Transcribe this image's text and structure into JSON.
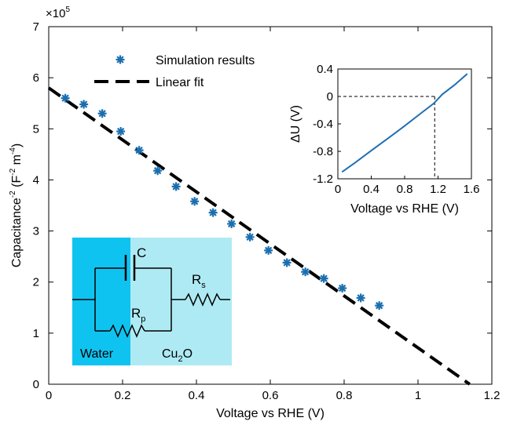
{
  "colors": {
    "series": "#1a6fb0",
    "fit": "#000000",
    "inset_line": "#1f6fb2",
    "water": "#0fc3f0",
    "cu2o": "#aeeaf4"
  },
  "chart_data": [
    {
      "type": "scatter",
      "xlabel": "Voltage vs RHE (V)",
      "ylabel_main": "Capacitance",
      "ylabel_exp": "-2",
      "ylabel_units_pre": " (F",
      "ylabel_units_exp1": "-2",
      "ylabel_units_mid": " m",
      "ylabel_units_exp2": "-4",
      "ylabel_units_post": ")",
      "multiplier": "×10",
      "multiplier_exp": "5",
      "xlim": [
        0,
        1.2
      ],
      "ylim": [
        0,
        7
      ],
      "xticks": [
        "0",
        "0.2",
        "0.4",
        "0.6",
        "0.8",
        "1",
        "1.2"
      ],
      "yticks": [
        "0",
        "1",
        "2",
        "3",
        "4",
        "5",
        "6",
        "7"
      ],
      "grid": false,
      "legend_position": "top-left",
      "series": [
        {
          "name": "Simulation results",
          "marker": "asterisk",
          "x": [
            0.045,
            0.095,
            0.145,
            0.195,
            0.245,
            0.295,
            0.345,
            0.395,
            0.445,
            0.495,
            0.545,
            0.595,
            0.645,
            0.695,
            0.745,
            0.795,
            0.845,
            0.895
          ],
          "y": [
            5.6,
            5.48,
            5.3,
            4.95,
            4.58,
            4.18,
            3.87,
            3.58,
            3.36,
            3.14,
            2.88,
            2.62,
            2.38,
            2.2,
            2.07,
            1.88,
            1.69,
            1.54
          ]
        },
        {
          "name": "Linear fit",
          "style": "dashed",
          "x": [
            0,
            1.14
          ],
          "y": [
            5.8,
            0
          ]
        }
      ],
      "circuit_labels": {
        "capacitor": "C",
        "r_s": "R",
        "r_s_sub": "s",
        "r_p": "R",
        "r_p_sub": "p",
        "water": "Water",
        "cu2o_pre": "Cu",
        "cu2o_sub": "2",
        "cu2o_post": "O"
      }
    },
    {
      "type": "line",
      "xlabel": "Voltage vs RHE (V)",
      "ylabel": "ΔU (V)",
      "xlim": [
        0,
        1.6
      ],
      "ylim": [
        -1.2,
        0.4
      ],
      "xticks": [
        "0",
        "0.4",
        "0.8",
        "1.2",
        "1.6"
      ],
      "yticks": [
        "-1.2",
        "-0.8",
        "-0.4",
        "0",
        "0.4"
      ],
      "grid": false,
      "series": [
        {
          "x": [
            0.05,
            0.2,
            0.4,
            0.6,
            0.8,
            1.0,
            1.15,
            1.25,
            1.4,
            1.55
          ],
          "y": [
            -1.1,
            -0.97,
            -0.79,
            -0.61,
            -0.43,
            -0.24,
            -0.1,
            0.03,
            0.17,
            0.33
          ]
        }
      ],
      "crossing": {
        "x": 1.16,
        "y": 0
      }
    }
  ]
}
